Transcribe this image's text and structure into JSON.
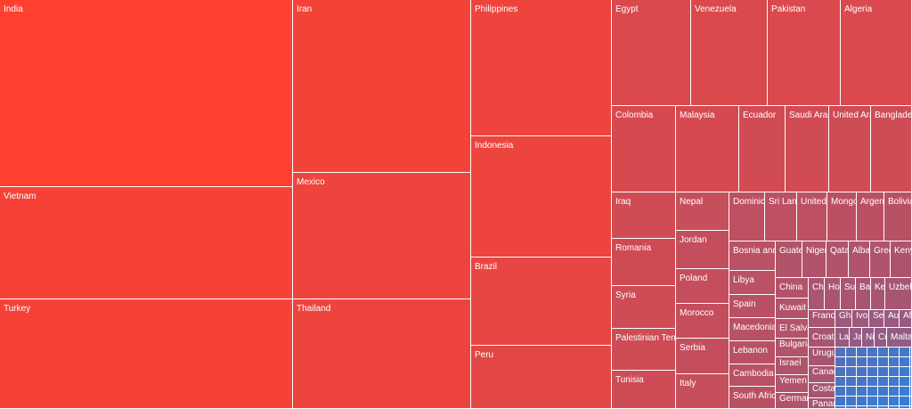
{
  "chart_data": {
    "type": "treemap",
    "title": "",
    "color_scale": {
      "high": "#ff4030",
      "mid": "#a85572",
      "low": "#2f7fd9"
    },
    "tiles": [
      {
        "name": "India",
        "value": 70000
      },
      {
        "name": "Vietnam",
        "value": 40500
      },
      {
        "name": "Turkey",
        "value": 40500
      },
      {
        "name": "Iran",
        "value": 32300
      },
      {
        "name": "Mexico",
        "value": 24000
      },
      {
        "name": "Thailand",
        "value": 22000
      },
      {
        "name": "Philippines",
        "value": 24000
      },
      {
        "name": "Indonesia",
        "value": 21500
      },
      {
        "name": "Brazil",
        "value": 15700
      },
      {
        "name": "Peru",
        "value": 11100
      },
      {
        "name": "Egypt",
        "value": 6500
      },
      {
        "name": "Venezuela",
        "value": 6400
      },
      {
        "name": "Pakistan",
        "value": 6000
      },
      {
        "name": "Algeria",
        "value": 6000
      },
      {
        "name": "Colombia",
        "value": 5000
      },
      {
        "name": "Malaysia",
        "value": 4700
      },
      {
        "name": "Ecuador",
        "value": 3500
      },
      {
        "name": "Saudi Arabia",
        "value": 3400
      },
      {
        "name": "United Arab Emirates",
        "value": 3100
      },
      {
        "name": "Bangladesh",
        "value": 3100
      },
      {
        "name": "Iraq",
        "value": 3500
      },
      {
        "name": "Romania",
        "value": 3300
      },
      {
        "name": "Syria",
        "value": 3000
      },
      {
        "name": "Palestinian Territories",
        "value": 2900
      },
      {
        "name": "Tunisia",
        "value": 2900
      },
      {
        "name": "Nepal",
        "value": 1900
      },
      {
        "name": "Jordan",
        "value": 1700
      },
      {
        "name": "Poland",
        "value": 1700
      },
      {
        "name": "Morocco",
        "value": 1700
      },
      {
        "name": "Serbia",
        "value": 1700
      },
      {
        "name": "Italy",
        "value": 1900
      },
      {
        "name": "Dominican Republic",
        "value": 1100
      },
      {
        "name": "Sri Lanka",
        "value": 1000
      },
      {
        "name": "United States",
        "value": 1000
      },
      {
        "name": "Mongolia",
        "value": 900
      },
      {
        "name": "Argentina",
        "value": 900
      },
      {
        "name": "Bolivia",
        "value": 800
      },
      {
        "name": "Bosnia and Herzegovina",
        "value": 850
      },
      {
        "name": "Libya",
        "value": 820
      },
      {
        "name": "Spain",
        "value": 800
      },
      {
        "name": "Macedonia",
        "value": 800
      },
      {
        "name": "Lebanon",
        "value": 800
      },
      {
        "name": "Cambodia",
        "value": 800
      },
      {
        "name": "South Africa",
        "value": 800
      },
      {
        "name": "Guatemala",
        "value": 500
      },
      {
        "name": "Niger",
        "value": 470
      },
      {
        "name": "Qatar",
        "value": 460
      },
      {
        "name": "Albania",
        "value": 440
      },
      {
        "name": "Greece",
        "value": 440
      },
      {
        "name": "Kenya",
        "value": 400
      },
      {
        "name": "China",
        "value": 560
      },
      {
        "name": "Kuwait",
        "value": 540
      },
      {
        "name": "El Salvador",
        "value": 520
      },
      {
        "name": "Bulgaria",
        "value": 500
      },
      {
        "name": "Israel",
        "value": 480
      },
      {
        "name": "Yemen",
        "value": 470
      },
      {
        "name": "Germany",
        "value": 460
      },
      {
        "name": "Chile",
        "value": 300
      },
      {
        "name": "Honduras",
        "value": 290
      },
      {
        "name": "Sudan",
        "value": 280
      },
      {
        "name": "Bahrain",
        "value": 270
      },
      {
        "name": "Kenya",
        "value": 260
      },
      {
        "name": "Uzbekistan",
        "value": 250
      },
      {
        "name": "France",
        "value": 290
      },
      {
        "name": "Croatia",
        "value": 280
      },
      {
        "name": "Uruguay",
        "value": 270
      },
      {
        "name": "Canada",
        "value": 260
      },
      {
        "name": "Costa Rica",
        "value": 250
      },
      {
        "name": "Panama",
        "value": 240
      },
      {
        "name": "Ghana",
        "value": 150
      },
      {
        "name": "Ivory Coast",
        "value": 150
      },
      {
        "name": "Senegal",
        "value": 140
      },
      {
        "name": "Australia",
        "value": 140
      },
      {
        "name": "Afghanistan",
        "value": 120
      },
      {
        "name": "Laos",
        "value": 110
      },
      {
        "name": "Japan",
        "value": 110
      },
      {
        "name": "Nigeria",
        "value": 100
      },
      {
        "name": "Cuba",
        "value": 100
      },
      {
        "name": "Malta",
        "value": 100
      }
    ]
  }
}
